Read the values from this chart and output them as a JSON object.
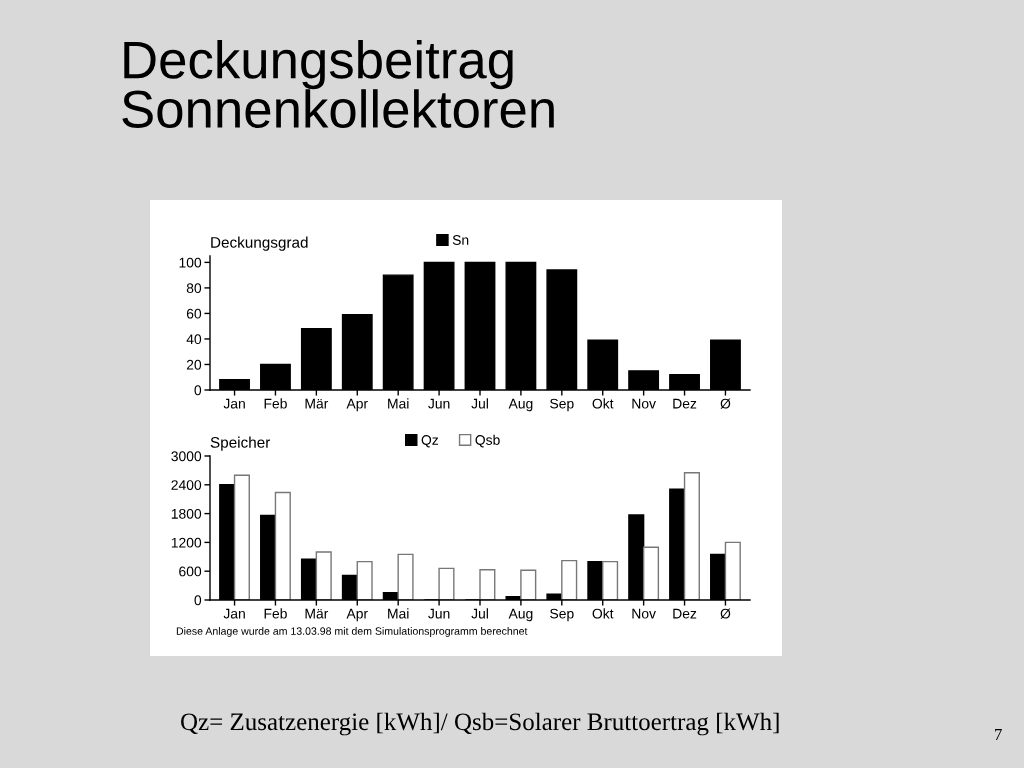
{
  "chart_data": [
    {
      "type": "bar",
      "title": "Deckungsbeitrag\nSonnenkollektoren",
      "subtitle": "Deckungsgrad",
      "categories": [
        "Jan",
        "Feb",
        "Mär",
        "Apr",
        "Mai",
        "Jun",
        "Jul",
        "Aug",
        "Sep",
        "Okt",
        "Nov",
        "Dez",
        "Ø"
      ],
      "series": [
        {
          "name": "Sn",
          "color": "#000000",
          "values": [
            8,
            20,
            48,
            59,
            90,
            100,
            100,
            100,
            94,
            39,
            15,
            12,
            39
          ]
        }
      ],
      "ylim": [
        0,
        105
      ],
      "yticks": [
        0,
        20,
        40,
        60,
        80,
        100
      ],
      "grid": false,
      "legend": "top"
    },
    {
      "type": "bar",
      "title": "Speicher",
      "categories": [
        "Jan",
        "Feb",
        "Mär",
        "Apr",
        "Mai",
        "Jun",
        "Jul",
        "Aug",
        "Sep",
        "Okt",
        "Nov",
        "Dez",
        "Ø"
      ],
      "series": [
        {
          "name": "Qz",
          "color": "#000000",
          "values": [
            2400,
            1760,
            850,
            510,
            150,
            0,
            0,
            70,
            120,
            800,
            1770,
            2310,
            950
          ]
        },
        {
          "name": "Qsb",
          "color": "#ffffff",
          "values": [
            2600,
            2240,
            1000,
            800,
            950,
            660,
            630,
            620,
            820,
            800,
            1100,
            2650,
            1200
          ]
        }
      ],
      "ylim": [
        0,
        3000
      ],
      "yticks": [
        0,
        600,
        1200,
        1800,
        2400,
        3000
      ],
      "grid": false,
      "legend": "top",
      "annotations": [
        "Diese Anlage wurde am 13.03.98 mit dem Simulationsprogramm berechnet",
        "Qz= Zusatzenergie [kWh]/ Qsb=Solarer Bruttoertrag [kWh]",
        "7"
      ]
    }
  ]
}
